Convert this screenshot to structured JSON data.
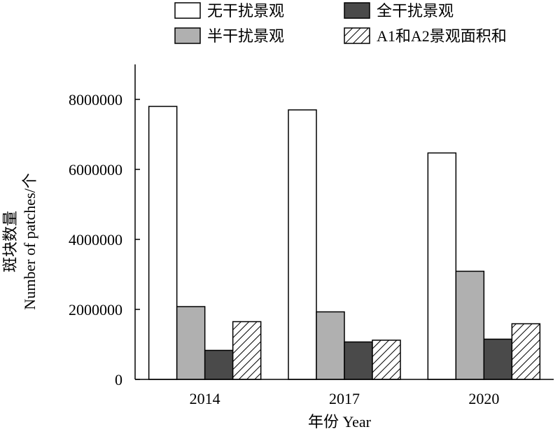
{
  "chart_data": {
    "type": "bar",
    "categories": [
      "2014",
      "2017",
      "2020"
    ],
    "series": [
      {
        "name": "无干扰景观",
        "values": [
          7800000,
          7700000,
          6470000
        ],
        "fill": "#ffffff",
        "pattern": "none"
      },
      {
        "name": "半干扰景观",
        "values": [
          2080000,
          1930000,
          3090000
        ],
        "fill": "#b0b0b0",
        "pattern": "none"
      },
      {
        "name": "全干扰景观",
        "values": [
          830000,
          1070000,
          1150000
        ],
        "fill": "#4a4a4a",
        "pattern": "none"
      },
      {
        "name": "A1和A2景观面积和",
        "values": [
          1650000,
          1120000,
          1590000
        ],
        "fill": "#ffffff",
        "pattern": "hatch"
      }
    ],
    "title": "",
    "xlabel": "年份 Year",
    "ylabel_cn": "斑块数量",
    "ylabel_en": "Number of patches/个",
    "ylim": [
      0,
      9000000
    ],
    "yticks": [
      0,
      2000000,
      4000000,
      6000000,
      8000000
    ],
    "ytick_labels": [
      "0",
      "2000000",
      "4000000",
      "6000000",
      "8000000"
    ],
    "grid": false,
    "legend_position": "top"
  }
}
